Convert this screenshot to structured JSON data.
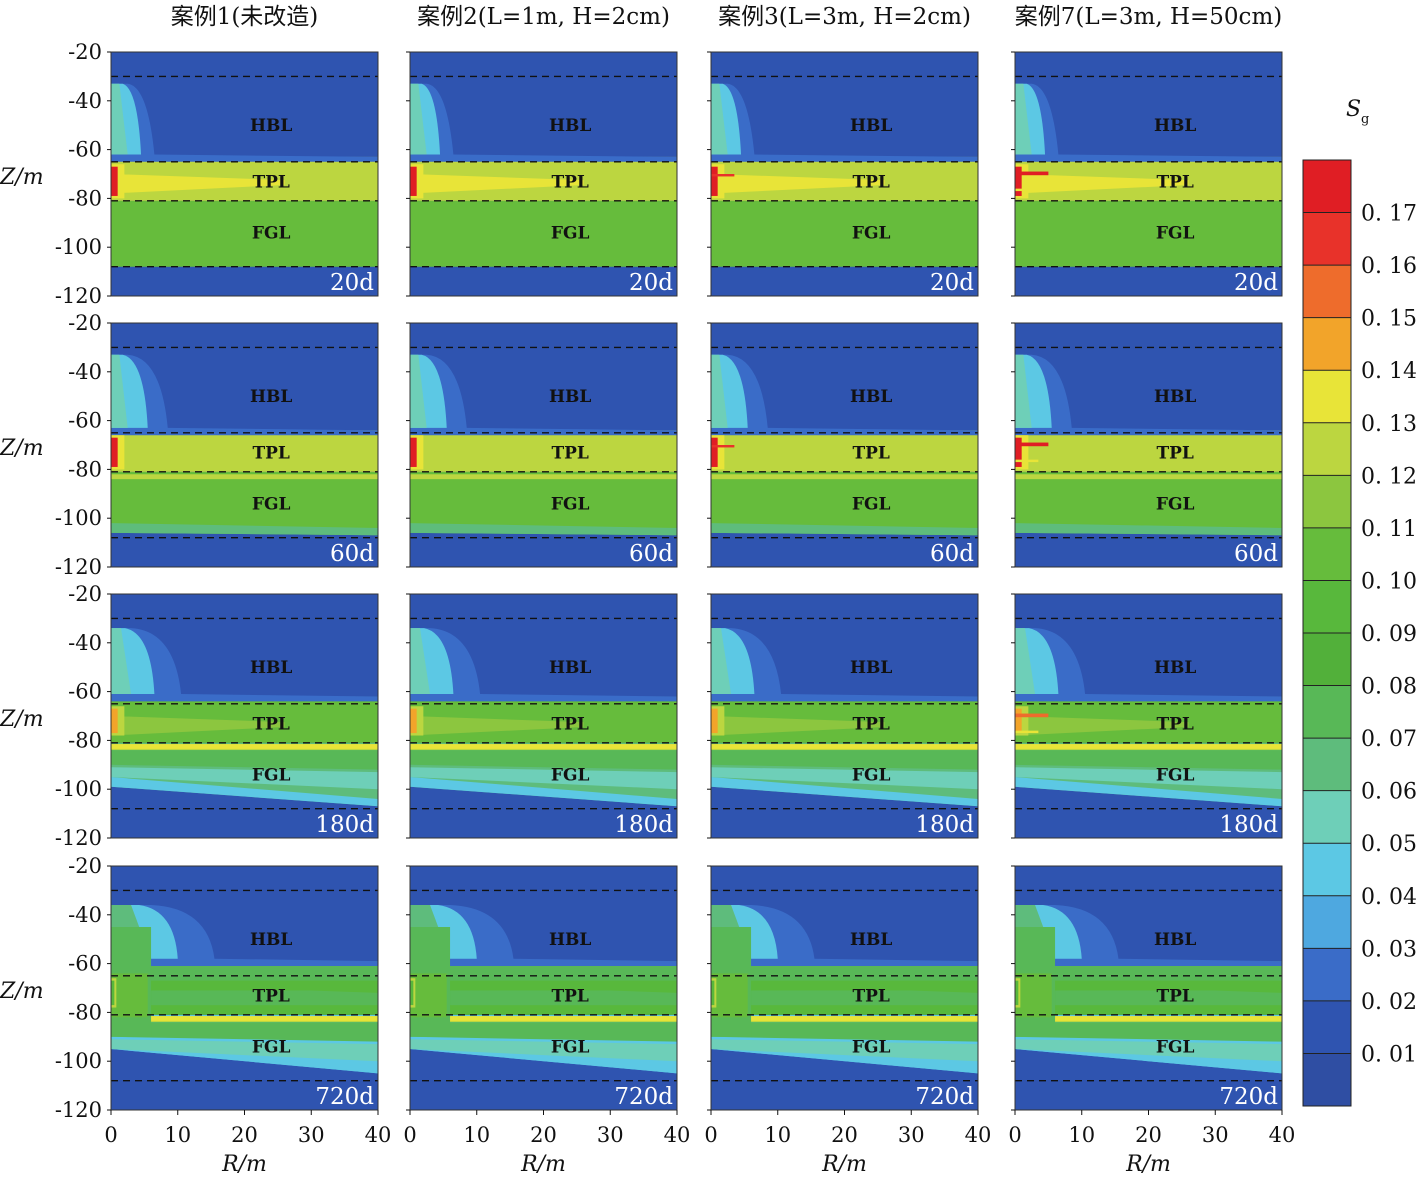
{
  "column_titles": [
    "案例1(未改造)",
    "案例2(L=1m, H=2cm)",
    "案例3(L=3m, H=2cm)",
    "案例7(L=3m, H=50cm)"
  ],
  "row_times": [
    "20d",
    "60d",
    "180d",
    "720d"
  ],
  "colorbar": {
    "symbol": "S",
    "subscript": "g",
    "ticks": [
      "0. 17",
      "0. 16",
      "0. 15",
      "0. 14",
      "0. 13",
      "0. 12",
      "0. 11",
      "0. 10",
      "0. 09",
      "0. 08",
      "0. 07",
      "0. 06",
      "0. 05",
      "0. 04",
      "0. 03",
      "0. 02",
      "0. 01"
    ]
  },
  "chart_data": {
    "type": "heatmap",
    "title": "",
    "xlabel": "R/m",
    "ylabel": "Z/m",
    "xlim": [
      0,
      40
    ],
    "ylim": [
      -120,
      -20
    ],
    "xticks": [
      "0",
      "10",
      "20",
      "30",
      "40"
    ],
    "yticks": [
      "-20",
      "-40",
      "-60",
      "-80",
      "-100",
      "-120"
    ],
    "layers": [
      "HBL",
      "TPL",
      "FGL"
    ],
    "layer_boundaries_z": [
      -30,
      -65,
      -81,
      -108
    ],
    "color_scale": {
      "levels": [
        0.01,
        0.02,
        0.03,
        0.04,
        0.05,
        0.06,
        0.07,
        0.08,
        0.09,
        0.1,
        0.11,
        0.12,
        0.13,
        0.14,
        0.15,
        0.16,
        0.17
      ],
      "colors": [
        "#2f4ea3",
        "#2f54b0",
        "#3a6cc8",
        "#4ea8e0",
        "#5cc8e4",
        "#6ecfb8",
        "#5ebc7c",
        "#58b857",
        "#52b03a",
        "#58b83c",
        "#66bc3c",
        "#8cc63f",
        "#bcd640",
        "#e8e438",
        "#f2a42a",
        "#ee6c2c",
        "#e8322a",
        "#e01e24"
      ],
      "range": [
        0.005,
        0.175
      ]
    },
    "series": [
      {
        "name": "案例1(未改造)",
        "time_labels": [
          "20d",
          "60d",
          "180d",
          "720d"
        ],
        "front_R": [
          4,
          6,
          9,
          12
        ],
        "max_Sg": [
          0.17,
          0.17,
          0.14,
          0.1
        ]
      },
      {
        "name": "案例2(L=1m, H=2cm)",
        "time_labels": [
          "20d",
          "60d",
          "180d",
          "720d"
        ],
        "front_R": [
          4,
          6,
          9,
          12
        ],
        "max_Sg": [
          0.17,
          0.17,
          0.14,
          0.1
        ]
      },
      {
        "name": "案例3(L=3m, H=2cm)",
        "time_labels": [
          "20d",
          "60d",
          "180d",
          "720d"
        ],
        "front_R": [
          4,
          6,
          9,
          12
        ],
        "max_Sg": [
          0.17,
          0.17,
          0.14,
          0.1
        ]
      },
      {
        "name": "案例7(L=3m, H=50cm)",
        "time_labels": [
          "20d",
          "60d",
          "180d",
          "720d"
        ],
        "front_R": [
          5,
          7,
          9,
          12
        ],
        "max_Sg": [
          0.17,
          0.17,
          0.15,
          0.1
        ]
      }
    ]
  }
}
